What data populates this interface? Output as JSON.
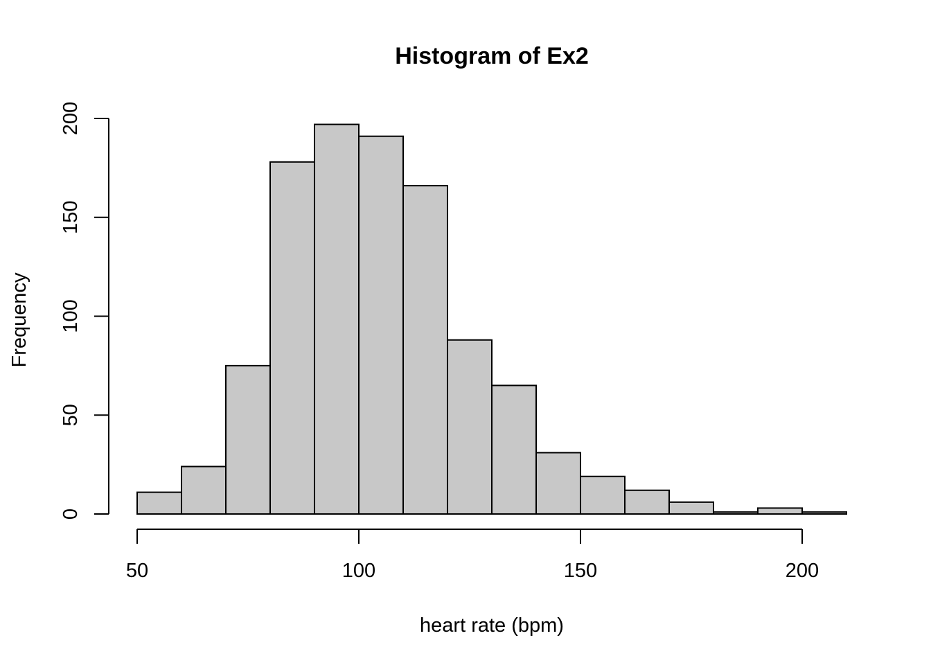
{
  "chart_data": {
    "type": "bar",
    "title": "Histogram of Ex2",
    "xlabel": "heart rate (bpm)",
    "ylabel": "Frequency",
    "bins": [
      {
        "start": 50,
        "end": 60,
        "count": 11
      },
      {
        "start": 60,
        "end": 70,
        "count": 24
      },
      {
        "start": 70,
        "end": 80,
        "count": 75
      },
      {
        "start": 80,
        "end": 90,
        "count": 178
      },
      {
        "start": 90,
        "end": 100,
        "count": 197
      },
      {
        "start": 100,
        "end": 110,
        "count": 191
      },
      {
        "start": 110,
        "end": 120,
        "count": 166
      },
      {
        "start": 120,
        "end": 130,
        "count": 88
      },
      {
        "start": 130,
        "end": 140,
        "count": 65
      },
      {
        "start": 140,
        "end": 150,
        "count": 31
      },
      {
        "start": 150,
        "end": 160,
        "count": 19
      },
      {
        "start": 160,
        "end": 170,
        "count": 12
      },
      {
        "start": 170,
        "end": 180,
        "count": 6
      },
      {
        "start": 180,
        "end": 190,
        "count": 1
      },
      {
        "start": 190,
        "end": 200,
        "count": 3
      },
      {
        "start": 200,
        "end": 210,
        "count": 1
      }
    ],
    "xticks": [
      50,
      100,
      150,
      200
    ],
    "yticks": [
      0,
      50,
      100,
      150,
      200
    ],
    "xlim": [
      50,
      210
    ],
    "ylim": [
      0,
      200
    ],
    "bar_color": "#c8c8c8",
    "edge_color": "#000000",
    "grid": false,
    "legend": "none"
  }
}
